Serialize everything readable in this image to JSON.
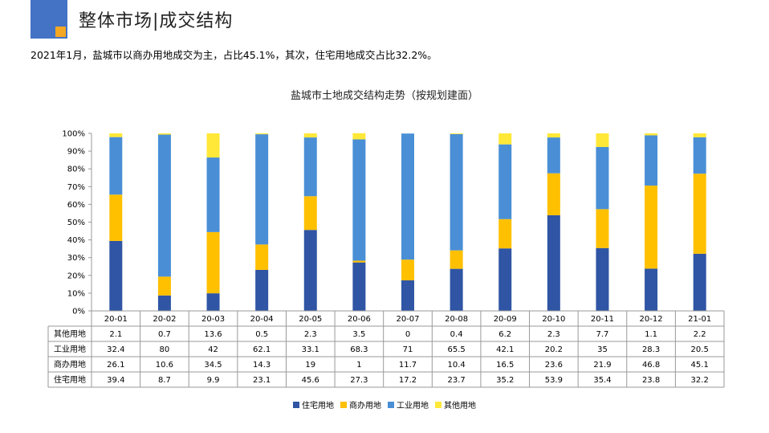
{
  "page": {
    "title": "整体市场|成交结构",
    "headline": "2021年1月，盐城市以商办用地成交为主，占比45.1%，其次，住宅用地成交占比32.2%。"
  },
  "chart_data": {
    "type": "bar",
    "stacked": true,
    "title": "盐城市土地成交结构走势（按规划建面）",
    "categories": [
      "20-01",
      "20-02",
      "20-03",
      "20-04",
      "20-05",
      "20-06",
      "20-07",
      "20-08",
      "20-09",
      "20-10",
      "20-11",
      "20-12",
      "21-01"
    ],
    "series": [
      {
        "name": "住宅用地",
        "color": "#2f55a4",
        "values": [
          39.4,
          8.7,
          9.9,
          23.1,
          45.6,
          27.3,
          17.2,
          23.7,
          35.2,
          53.9,
          35.4,
          23.8,
          32.2
        ]
      },
      {
        "name": "商办用地",
        "color": "#ffc000",
        "values": [
          26.1,
          10.6,
          34.5,
          14.3,
          19,
          1,
          11.7,
          10.4,
          16.5,
          23.6,
          21.9,
          46.8,
          45.1
        ]
      },
      {
        "name": "工业用地",
        "color": "#4a8fd6",
        "values": [
          32.4,
          80,
          42,
          62.1,
          33.1,
          68.3,
          71,
          65.5,
          42.1,
          20.2,
          35,
          28.3,
          20.5
        ]
      },
      {
        "name": "其他用地",
        "color": "#ffe838",
        "values": [
          2.1,
          0.7,
          13.6,
          0.5,
          2.3,
          3.5,
          0,
          0.4,
          6.2,
          2.3,
          7.7,
          1.1,
          2.2
        ]
      }
    ],
    "table_rows": [
      {
        "label": "其他用地",
        "values": [
          "2.1",
          "0.7",
          "13.6",
          "0.5",
          "2.3",
          "3.5",
          "0",
          "0.4",
          "6.2",
          "2.3",
          "7.7",
          "1.1",
          "2.2"
        ]
      },
      {
        "label": "工业用地",
        "values": [
          "32.4",
          "80",
          "42",
          "62.1",
          "33.1",
          "68.3",
          "71",
          "65.5",
          "42.1",
          "20.2",
          "35",
          "28.3",
          "20.5"
        ]
      },
      {
        "label": "商办用地",
        "values": [
          "26.1",
          "10.6",
          "34.5",
          "14.3",
          "19",
          "1",
          "11.7",
          "10.4",
          "16.5",
          "23.6",
          "21.9",
          "46.8",
          "45.1"
        ]
      },
      {
        "label": "住宅用地",
        "values": [
          "39.4",
          "8.7",
          "9.9",
          "23.1",
          "45.6",
          "27.3",
          "17.2",
          "23.7",
          "35.2",
          "53.9",
          "35.4",
          "23.8",
          "32.2"
        ]
      }
    ],
    "y_ticks": [
      "0%",
      "10%",
      "20%",
      "30%",
      "40%",
      "50%",
      "60%",
      "70%",
      "80%",
      "90%",
      "100%"
    ],
    "ylim": [
      0,
      100
    ],
    "legend_position": "bottom"
  }
}
